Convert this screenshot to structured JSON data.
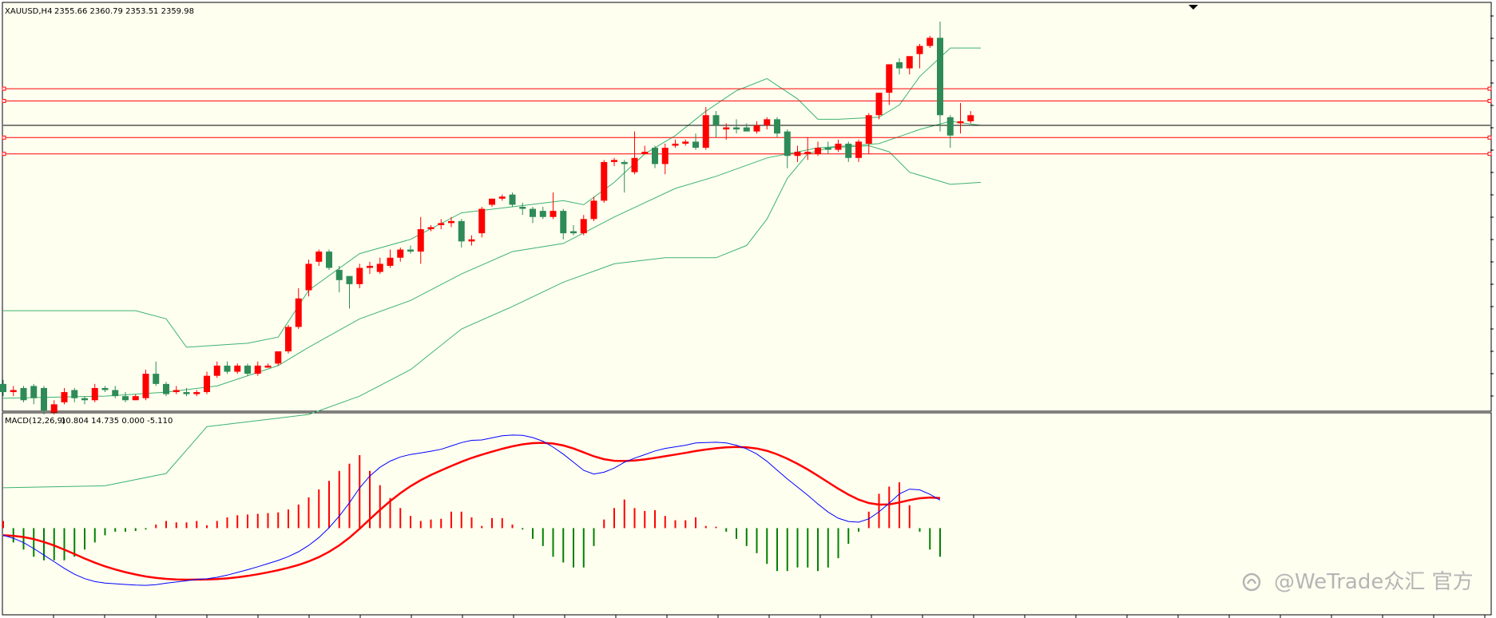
{
  "chart_data": [
    {
      "type": "candlestick",
      "symbol_label": "XAUUSD,H4",
      "ohlc_label": "2355.66 2360.79 2353.51 2359.98",
      "y_range": [
        2240,
        2440
      ],
      "horizontal_levels": [
        2398,
        2392,
        2380,
        2374,
        2366
      ],
      "level_colors": [
        "#ff0000",
        "#ff0000",
        "#000000",
        "#ff0000",
        "#ff0000"
      ],
      "candles": [
        [
          2253,
          2249,
          2255,
          2247
        ],
        [
          2249,
          2250,
          2252,
          2247
        ],
        [
          2251,
          2245,
          2252,
          2244
        ],
        [
          2252,
          2246,
          2253,
          2243
        ],
        [
          2251,
          2240,
          2252,
          2238
        ],
        [
          2239,
          2243,
          2245,
          2238
        ],
        [
          2244,
          2249,
          2251,
          2243
        ],
        [
          2250,
          2246,
          2251,
          2244
        ],
        [
          2246,
          2245,
          2247,
          2243
        ],
        [
          2245,
          2251,
          2253,
          2244
        ],
        [
          2251,
          2250,
          2252,
          2249
        ],
        [
          2250,
          2247,
          2252,
          2246
        ],
        [
          2247,
          2245,
          2249,
          2244
        ],
        [
          2245,
          2247,
          2248,
          2245
        ],
        [
          2246,
          2258,
          2260,
          2245
        ],
        [
          2258,
          2253,
          2264,
          2252
        ],
        [
          2253,
          2248,
          2254,
          2247
        ],
        [
          2249,
          2250,
          2252,
          2248
        ],
        [
          2249,
          2248,
          2251,
          2247
        ],
        [
          2248,
          2249,
          2250,
          2247
        ],
        [
          2249,
          2257,
          2259,
          2248
        ],
        [
          2257,
          2262,
          2264,
          2256
        ],
        [
          2262,
          2259,
          2264,
          2258
        ],
        [
          2259,
          2262,
          2263,
          2258
        ],
        [
          2262,
          2258,
          2263,
          2257
        ],
        [
          2258,
          2262,
          2264,
          2257
        ],
        [
          2261,
          2262,
          2263,
          2261
        ],
        [
          2263,
          2269,
          2269,
          2262
        ],
        [
          2269,
          2281,
          2282,
          2268
        ],
        [
          2281,
          2295,
          2300,
          2280
        ],
        [
          2299,
          2312,
          2314,
          2296
        ],
        [
          2313,
          2318,
          2319,
          2311
        ],
        [
          2318,
          2310,
          2319,
          2309
        ],
        [
          2309,
          2304,
          2311,
          2298
        ],
        [
          2306,
          2302,
          2306,
          2290
        ],
        [
          2302,
          2310,
          2312,
          2300
        ],
        [
          2310,
          2311,
          2313,
          2307
        ],
        [
          2308,
          2312,
          2315,
          2307
        ],
        [
          2311,
          2315,
          2319,
          2310
        ],
        [
          2315,
          2319,
          2320,
          2313
        ],
        [
          2319,
          2318,
          2321,
          2317
        ],
        [
          2318,
          2329,
          2335,
          2312
        ],
        [
          2329,
          2330,
          2331,
          2328
        ],
        [
          2331,
          2332,
          2334,
          2329
        ],
        [
          2332,
          2333,
          2335,
          2330
        ],
        [
          2333,
          2323,
          2334,
          2320
        ],
        [
          2323,
          2324,
          2326,
          2321
        ],
        [
          2327,
          2339,
          2340,
          2325
        ],
        [
          2341,
          2344,
          2344,
          2340
        ],
        [
          2344,
          2345,
          2346,
          2343
        ],
        [
          2346,
          2341,
          2347,
          2340
        ],
        [
          2340,
          2339,
          2342,
          2336
        ],
        [
          2339,
          2335,
          2340,
          2332
        ],
        [
          2338,
          2335,
          2340,
          2334
        ],
        [
          2335,
          2338,
          2347,
          2334
        ],
        [
          2338,
          2327,
          2339,
          2324
        ],
        [
          2328,
          2327,
          2331,
          2326
        ],
        [
          2327,
          2334,
          2336,
          2326
        ],
        [
          2334,
          2343,
          2345,
          2333
        ],
        [
          2343,
          2362,
          2363,
          2342
        ],
        [
          2362,
          2363,
          2364,
          2360
        ],
        [
          2362,
          2361,
          2363,
          2347
        ],
        [
          2357,
          2364,
          2377,
          2356
        ],
        [
          2366,
          2367,
          2370,
          2366
        ],
        [
          2369,
          2361,
          2370,
          2359
        ],
        [
          2361,
          2369,
          2371,
          2356
        ],
        [
          2370,
          2371,
          2373,
          2369
        ],
        [
          2371,
          2372,
          2373,
          2370
        ],
        [
          2372,
          2369,
          2376,
          2368
        ],
        [
          2369,
          2385,
          2389,
          2368
        ],
        [
          2385,
          2380,
          2387,
          2374
        ],
        [
          2378,
          2379,
          2381,
          2373
        ],
        [
          2379,
          2378,
          2383,
          2376
        ],
        [
          2379,
          2377,
          2381,
          2377
        ],
        [
          2377,
          2380,
          2382,
          2376
        ],
        [
          2380,
          2383,
          2384,
          2378
        ],
        [
          2383,
          2376,
          2384,
          2374
        ],
        [
          2377,
          2365,
          2378,
          2359
        ],
        [
          2365,
          2367,
          2370,
          2362
        ],
        [
          2366,
          2367,
          2374,
          2363
        ],
        [
          2366,
          2369,
          2372,
          2365
        ],
        [
          2369,
          2368,
          2372,
          2366
        ],
        [
          2368,
          2371,
          2373,
          2367
        ],
        [
          2371,
          2364,
          2372,
          2362
        ],
        [
          2364,
          2372,
          2373,
          2362
        ],
        [
          2371,
          2385,
          2386,
          2366
        ],
        [
          2385,
          2396,
          2396,
          2383
        ],
        [
          2396,
          2410,
          2410,
          2390
        ],
        [
          2411,
          2408,
          2413,
          2405
        ],
        [
          2408,
          2414,
          2414,
          2405
        ],
        [
          2415,
          2419,
          2420,
          2408
        ],
        [
          2419,
          2423,
          2424,
          2418
        ],
        [
          2423,
          2385,
          2431,
          2377
        ],
        [
          2384,
          2375,
          2385,
          2369
        ],
        [
          2381,
          2382,
          2391,
          2376
        ],
        [
          2382,
          2385,
          2387,
          2381
        ]
      ],
      "bollinger": {
        "upper": [
          [
            0,
            2289
          ],
          [
            13,
            2289
          ],
          [
            16,
            2285
          ],
          [
            18,
            2271
          ],
          [
            24,
            2273
          ],
          [
            27,
            2276
          ],
          [
            30,
            2299
          ],
          [
            35,
            2317
          ],
          [
            40,
            2324
          ],
          [
            45,
            2337
          ],
          [
            50,
            2340
          ],
          [
            55,
            2343
          ],
          [
            57,
            2341
          ],
          [
            60,
            2352
          ],
          [
            63,
            2366
          ],
          [
            66,
            2375
          ],
          [
            69,
            2387
          ],
          [
            72,
            2397
          ],
          [
            75,
            2403
          ],
          [
            78,
            2393
          ],
          [
            80,
            2383
          ],
          [
            82,
            2383
          ],
          [
            86,
            2384
          ],
          [
            88,
            2390
          ],
          [
            90,
            2404
          ],
          [
            93,
            2418
          ],
          [
            96,
            2418
          ]
        ],
        "middle": [
          [
            0,
            2246
          ],
          [
            10,
            2247
          ],
          [
            16,
            2249
          ],
          [
            21,
            2252
          ],
          [
            27,
            2262
          ],
          [
            30,
            2271
          ],
          [
            35,
            2285
          ],
          [
            40,
            2294
          ],
          [
            45,
            2307
          ],
          [
            50,
            2318
          ],
          [
            55,
            2322
          ],
          [
            60,
            2335
          ],
          [
            66,
            2349
          ],
          [
            70,
            2355
          ],
          [
            75,
            2364
          ],
          [
            80,
            2369
          ],
          [
            86,
            2371
          ],
          [
            90,
            2378
          ],
          [
            93,
            2382
          ],
          [
            96,
            2380
          ]
        ],
        "lower": [
          [
            0,
            2202
          ],
          [
            10,
            2203
          ],
          [
            16,
            2209
          ],
          [
            20,
            2232
          ],
          [
            25,
            2235
          ],
          [
            30,
            2238
          ],
          [
            35,
            2247
          ],
          [
            40,
            2260
          ],
          [
            45,
            2280
          ],
          [
            50,
            2291
          ],
          [
            55,
            2303
          ],
          [
            60,
            2312
          ],
          [
            65,
            2315
          ],
          [
            70,
            2315
          ],
          [
            73,
            2321
          ],
          [
            75,
            2334
          ],
          [
            77,
            2354
          ],
          [
            79,
            2366
          ],
          [
            81,
            2369
          ],
          [
            85,
            2370
          ],
          [
            87,
            2367
          ],
          [
            89,
            2357
          ],
          [
            93,
            2351
          ],
          [
            96,
            2352
          ]
        ]
      }
    },
    {
      "type": "macd",
      "indicator_label": "MACD(12,26,9)",
      "values_label": "10.804 14.735 0.000 -5.110",
      "y_range": [
        -12,
        16
      ],
      "histogram": [
        1,
        -2,
        -3,
        -4,
        -4.5,
        -4.5,
        -4.5,
        -4,
        -3,
        -2,
        -1,
        -0.5,
        -0.5,
        -0.4,
        -0.2,
        0.5,
        1,
        0.8,
        0.8,
        1,
        0.4,
        1,
        1.5,
        1.8,
        1.9,
        2,
        2.1,
        2.2,
        2.6,
        3.3,
        4.3,
        5.4,
        6.6,
        8.0,
        9.0,
        10.2,
        8.0,
        6.0,
        4.2,
        2.8,
        1.7,
        1.0,
        1.2,
        1.3,
        2.3,
        2.3,
        1.5,
        0.3,
        1.4,
        1.4,
        0.5,
        -0.2,
        -1.5,
        -2.5,
        -4.0,
        -4.8,
        -5.5,
        -5.5,
        -2.5,
        1.2,
        2.8,
        4.0,
        2.8,
        2.4,
        2.5,
        1.7,
        1.1,
        1.1,
        1.5,
        0.3,
        0.2,
        -0.5,
        -1.5,
        -2.5,
        -3.5,
        -5.0,
        -6.0,
        -6.0,
        -5.5,
        -5.5,
        -6.0,
        -5.5,
        -4.2,
        -2.2,
        -0.5,
        2.3,
        4.8,
        5.8,
        6.4,
        3.2,
        -0.5,
        -3.0,
        -4.0
      ]
    }
  ],
  "watermark": {
    "handle": "@WeTrade众汇 官方"
  }
}
